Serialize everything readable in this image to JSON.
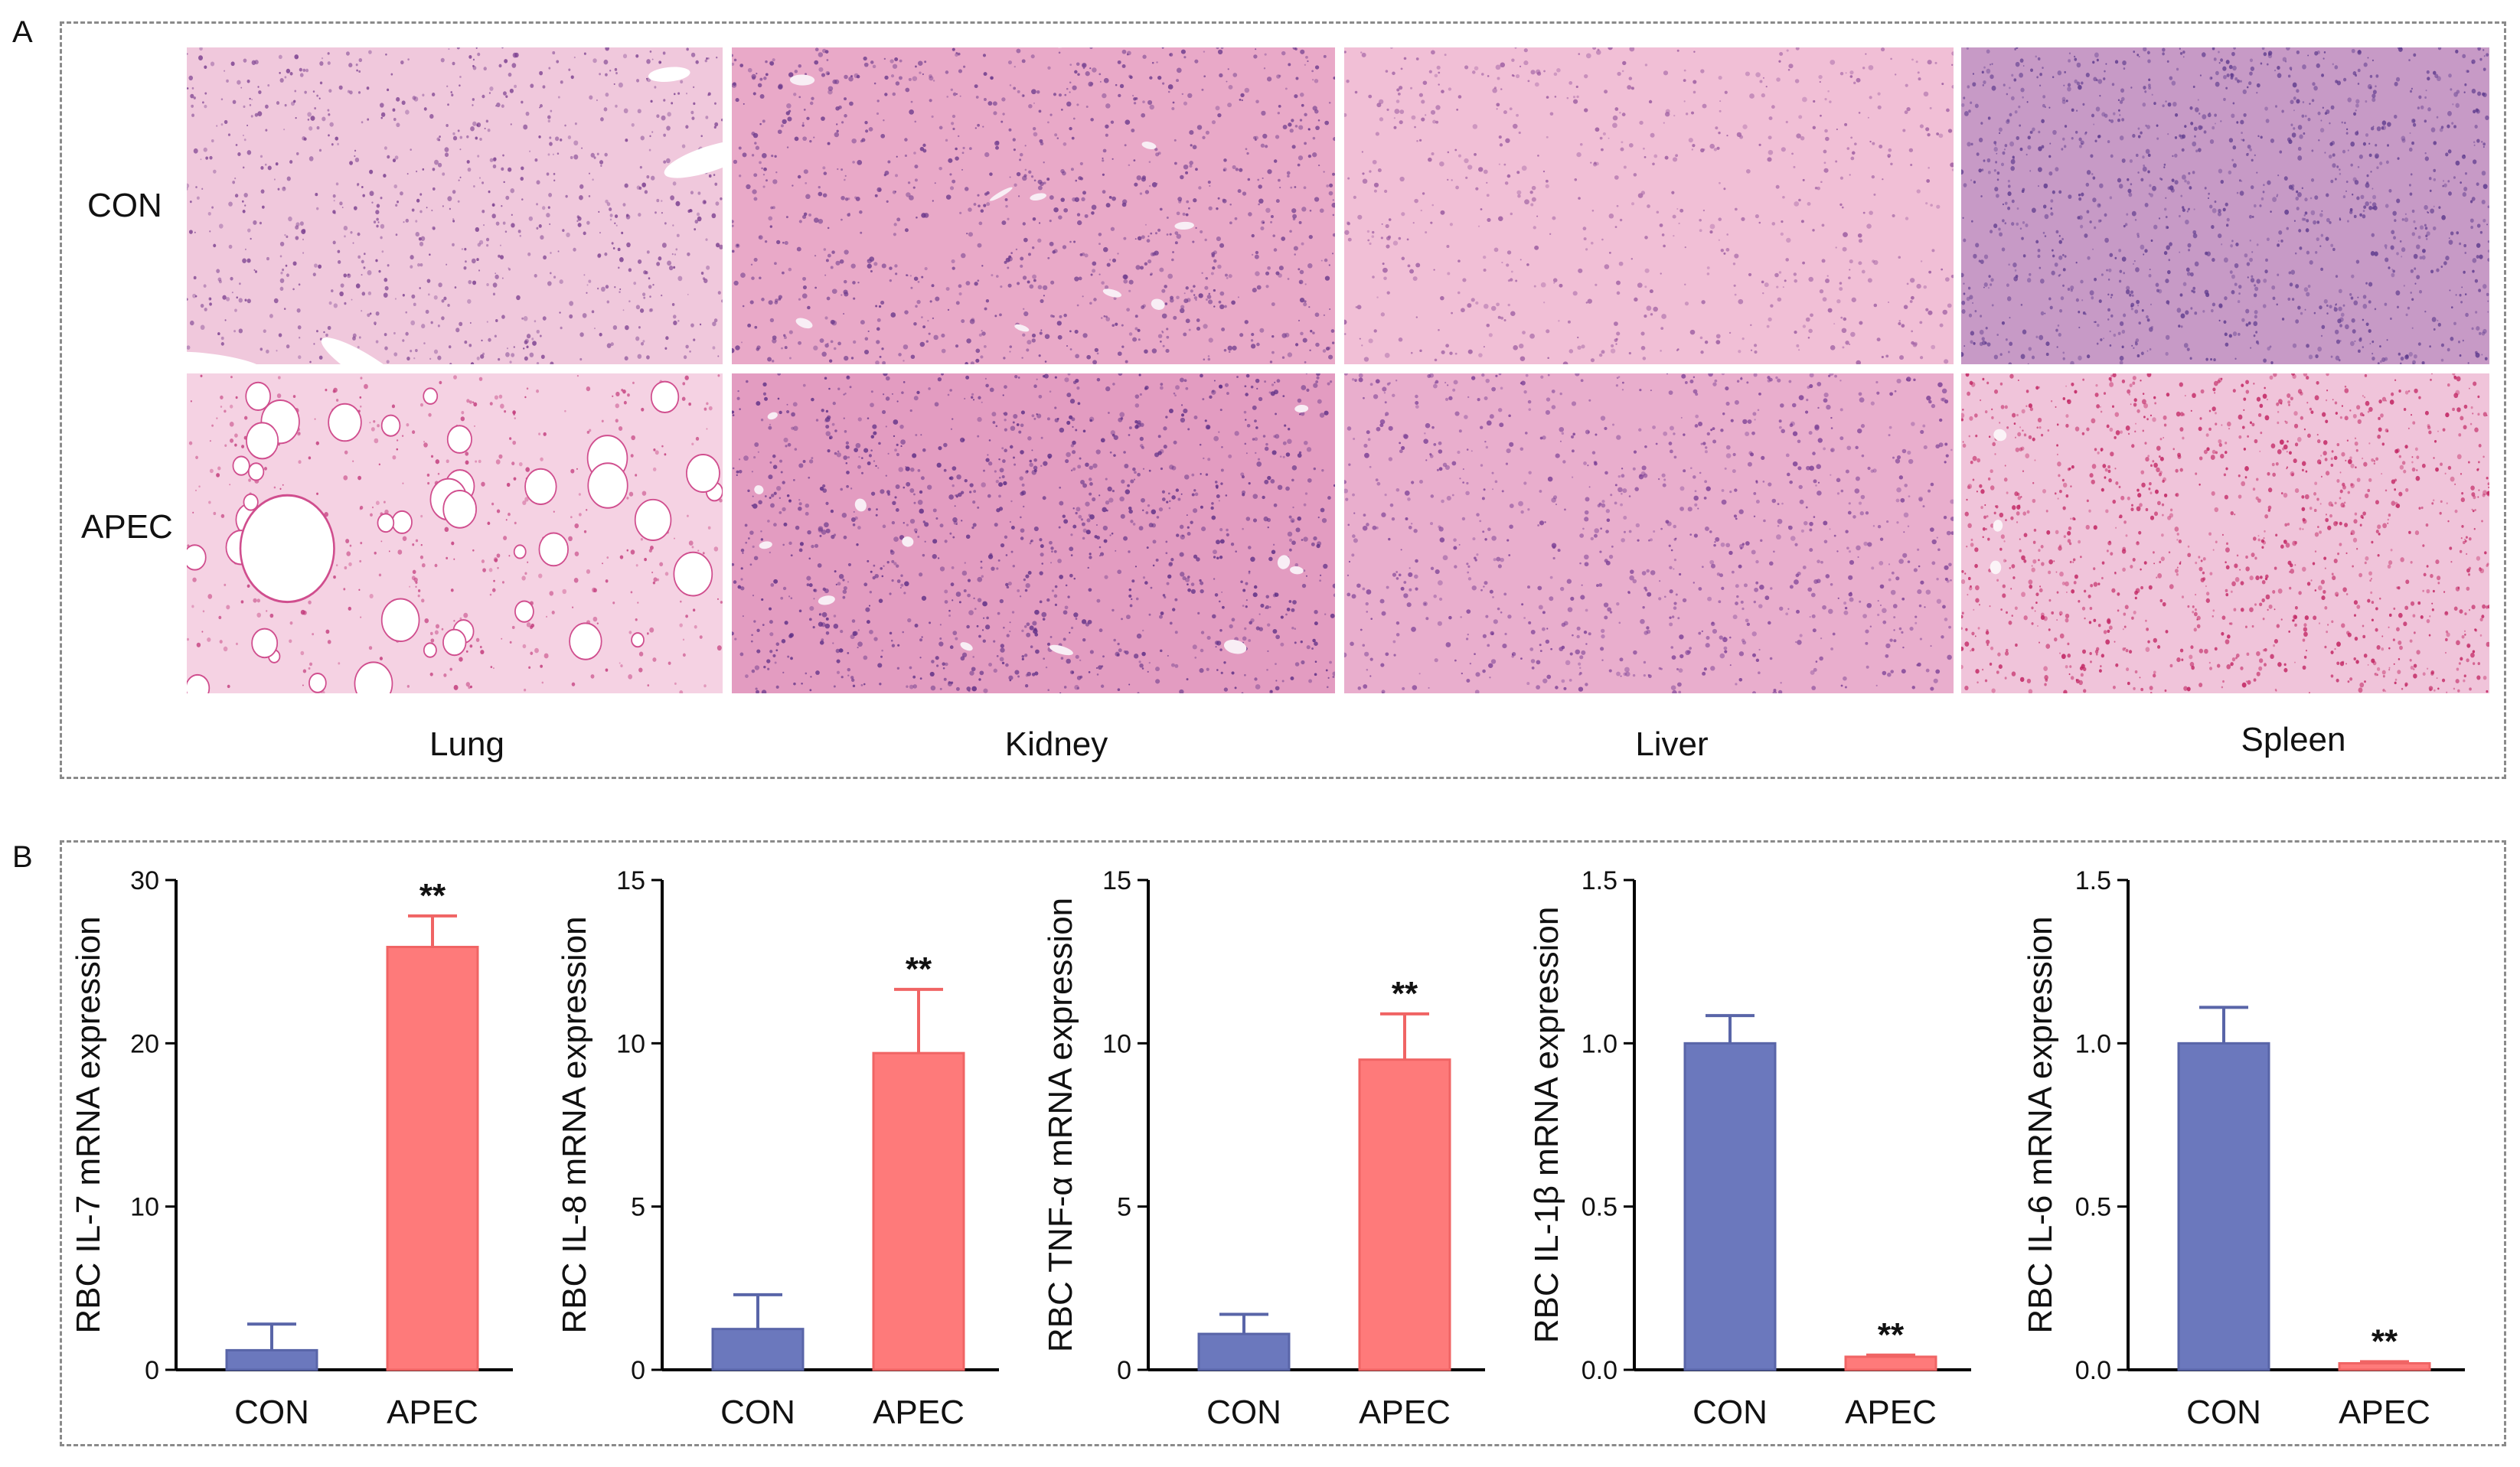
{
  "panels": {
    "a": "A",
    "b": "B"
  },
  "histology": {
    "row_labels": [
      "CON",
      "APEC"
    ],
    "col_labels": [
      "Lung",
      "Kidney",
      "Liver",
      "Spleen"
    ]
  },
  "colors": {
    "con": "#6b78bd",
    "apec": "#fe7a7a",
    "tissue_light": "#f3c6df",
    "tissue_dark": "#9b4f9f",
    "nuclei": "#6a3f8f"
  },
  "chart_data": [
    {
      "type": "bar",
      "ylabel": "RBC IL-7 mRNA expression",
      "categories": [
        "CON",
        "APEC"
      ],
      "values": [
        1.2,
        25.9
      ],
      "errors": [
        1.6,
        1.9
      ],
      "ylim": [
        0,
        30
      ],
      "yticks": [
        "0",
        "10",
        "20",
        "30"
      ],
      "tick_values": [
        0,
        10,
        20,
        30
      ],
      "significance": [
        "",
        "**"
      ]
    },
    {
      "type": "bar",
      "ylabel": "RBC IL-8 mRNA expression",
      "categories": [
        "CON",
        "APEC"
      ],
      "values": [
        1.25,
        9.7
      ],
      "errors": [
        1.05,
        1.95
      ],
      "ylim": [
        0,
        15
      ],
      "yticks": [
        "0",
        "5",
        "10",
        "15"
      ],
      "tick_values": [
        0,
        5,
        10,
        15
      ],
      "significance": [
        "",
        "**"
      ]
    },
    {
      "type": "bar",
      "ylabel": "RBC TNF-α mRNA expression",
      "categories": [
        "CON",
        "APEC"
      ],
      "values": [
        1.1,
        9.5
      ],
      "errors": [
        0.6,
        1.4
      ],
      "ylim": [
        0,
        15
      ],
      "yticks": [
        "0",
        "5",
        "10",
        "15"
      ],
      "tick_values": [
        0,
        5,
        10,
        15
      ],
      "significance": [
        "",
        "**"
      ]
    },
    {
      "type": "bar",
      "ylabel": "RBC IL-1β mRNA expression",
      "categories": [
        "CON",
        "APEC"
      ],
      "values": [
        1.0,
        0.04
      ],
      "errors": [
        0.085,
        0.005
      ],
      "ylim": [
        0,
        1.5
      ],
      "yticks": [
        "0.0",
        "0.5",
        "1.0",
        "1.5"
      ],
      "tick_values": [
        0,
        0.5,
        1.0,
        1.5
      ],
      "significance": [
        "",
        "**"
      ]
    },
    {
      "type": "bar",
      "ylabel": "RBC IL-6 mRNA expression",
      "categories": [
        "CON",
        "APEC"
      ],
      "values": [
        1.0,
        0.02
      ],
      "errors": [
        0.11,
        0.005
      ],
      "ylim": [
        0,
        1.5
      ],
      "yticks": [
        "0.0",
        "0.5",
        "1.0",
        "1.5"
      ],
      "tick_values": [
        0,
        0.5,
        1.0,
        1.5
      ],
      "significance": [
        "",
        "**"
      ]
    }
  ]
}
